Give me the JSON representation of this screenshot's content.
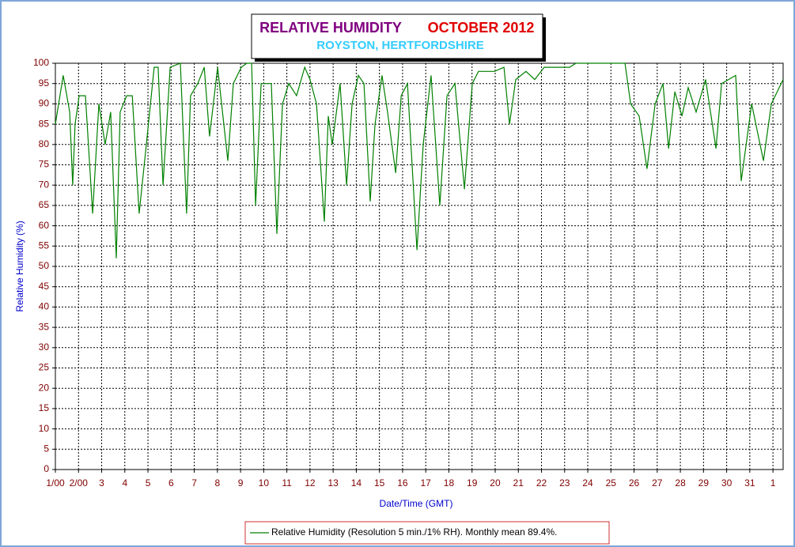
{
  "chart_data": {
    "type": "line",
    "title": "RELATIVE HUMIDITY",
    "title_period": "OCTOBER 2012",
    "subtitle": "ROYSTON, HERTFORDSHIRE",
    "x_label": "Date/Time (GMT)",
    "y_label": "Relative Humidity (%)",
    "x": [
      0,
      0.34,
      0.62,
      0.75,
      0.85,
      1.03,
      1.3,
      1.61,
      1.88,
      2.15,
      2.39,
      2.63,
      2.8,
      3.08,
      3.32,
      3.62,
      3.93,
      4.27,
      4.44,
      4.65,
      4.96,
      5.4,
      5.67,
      5.84,
      6.15,
      6.43,
      6.66,
      7.01,
      7.45,
      7.69,
      8.03,
      8.27,
      8.48,
      8.65,
      8.89,
      9.33,
      9.57,
      9.81,
      10.08,
      10.42,
      10.77,
      11.0,
      11.28,
      11.62,
      11.79,
      11.96,
      12.3,
      12.58,
      12.82,
      13.09,
      13.33,
      13.6,
      13.81,
      14.11,
      14.35,
      14.7,
      14.94,
      15.21,
      15.62,
      15.89,
      16.23,
      16.61,
      16.92,
      17.26,
      17.67,
      18.01,
      18.28,
      18.97,
      19.38,
      19.62,
      19.89,
      20.33,
      20.71,
      21.12,
      22.21,
      22.49,
      24.61,
      24.85,
      25.22,
      25.56,
      25.91,
      26.25,
      26.49,
      26.76,
      27.07,
      27.34,
      27.68,
      28.09,
      28.54,
      28.78,
      29.39,
      29.63,
      30.08,
      30.59,
      30.93,
      31.44
    ],
    "series": [
      {
        "name": "Relative Humidity (Resolution 5 min./1% RH). Monthly mean 89.4%.",
        "color": "#008000",
        "values": [
          85,
          97,
          88,
          70,
          85,
          92,
          92,
          63,
          90,
          80,
          88,
          52,
          88,
          92,
          92,
          63,
          80,
          99,
          99,
          70,
          99,
          100,
          63,
          92,
          95,
          99,
          82,
          99,
          76,
          95,
          99,
          100,
          100,
          65,
          95,
          95,
          58,
          90,
          95,
          92,
          99,
          96,
          90,
          61,
          87,
          80,
          95,
          70,
          90,
          97,
          95,
          66,
          85,
          97,
          88,
          73,
          92,
          95,
          54,
          80,
          97,
          65,
          92,
          95,
          69,
          95,
          98,
          98,
          99,
          85,
          96,
          98,
          96,
          99,
          99,
          100,
          100,
          90,
          87,
          74,
          90,
          95,
          79,
          93,
          87,
          94,
          88,
          96,
          79,
          95,
          97,
          71,
          90,
          76,
          90,
          96
        ]
      }
    ],
    "xlim": [
      0,
      31.44
    ],
    "ylim": [
      0,
      100
    ],
    "xticks": [
      {
        "value": 0,
        "label": "1/00"
      },
      {
        "value": 1,
        "label": "2/00"
      },
      {
        "value": 2,
        "label": "3"
      },
      {
        "value": 3,
        "label": "4"
      },
      {
        "value": 4,
        "label": "5"
      },
      {
        "value": 5,
        "label": "6"
      },
      {
        "value": 6,
        "label": "7"
      },
      {
        "value": 7,
        "label": "8"
      },
      {
        "value": 8,
        "label": "9"
      },
      {
        "value": 9,
        "label": "10"
      },
      {
        "value": 10,
        "label": "11"
      },
      {
        "value": 11,
        "label": "12"
      },
      {
        "value": 12,
        "label": "13"
      },
      {
        "value": 13,
        "label": "14"
      },
      {
        "value": 14,
        "label": "15"
      },
      {
        "value": 15,
        "label": "16"
      },
      {
        "value": 16,
        "label": "17"
      },
      {
        "value": 17,
        "label": "18"
      },
      {
        "value": 18,
        "label": "19"
      },
      {
        "value": 19,
        "label": "20"
      },
      {
        "value": 20,
        "label": "21"
      },
      {
        "value": 21,
        "label": "22"
      },
      {
        "value": 22,
        "label": "23"
      },
      {
        "value": 23,
        "label": "24"
      },
      {
        "value": 24,
        "label": "25"
      },
      {
        "value": 25,
        "label": "26"
      },
      {
        "value": 26,
        "label": "27"
      },
      {
        "value": 27,
        "label": "28"
      },
      {
        "value": 28,
        "label": "29"
      },
      {
        "value": 29,
        "label": "30"
      },
      {
        "value": 30,
        "label": "31"
      },
      {
        "value": 31,
        "label": "1"
      }
    ],
    "yticks": [
      0,
      5,
      10,
      15,
      20,
      25,
      30,
      35,
      40,
      45,
      50,
      55,
      60,
      65,
      70,
      75,
      80,
      85,
      90,
      95,
      100
    ],
    "grid": true,
    "legend": "bottom"
  }
}
